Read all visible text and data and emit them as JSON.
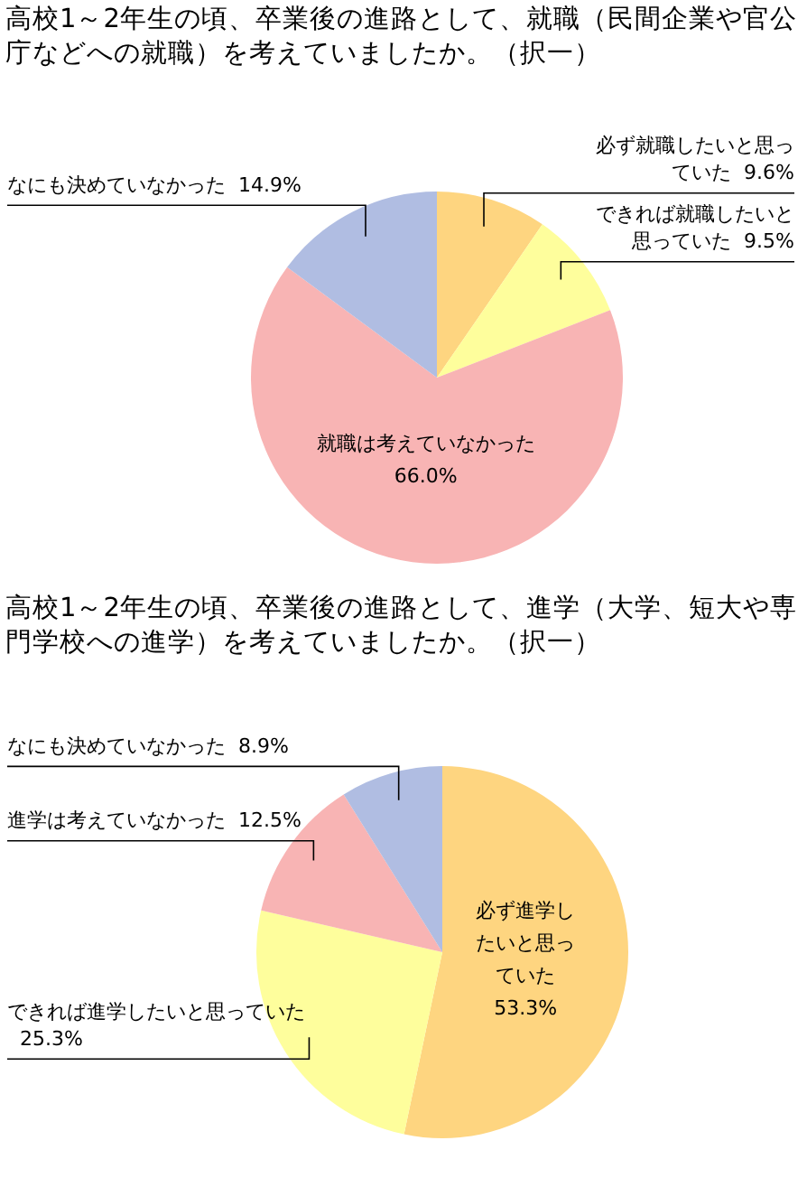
{
  "chart_data": [
    {
      "type": "pie",
      "title": "高校1～2年生の頃、卒業後の進路として、就職（民間企業や官公庁などへの就職）を考えていましたか。（択一）",
      "categories": [
        "必ず就職したいと思っていた",
        "できれば就職したいと思っていた",
        "就職は考えていなかった",
        "なにも決めていなかった"
      ],
      "values": [
        9.6,
        9.5,
        66.0,
        14.9
      ],
      "value_labels": [
        "9.6%",
        "9.5%",
        "66.0%",
        "14.9%"
      ],
      "colors": [
        "#fed580",
        "#fefe9c",
        "#f8b4b4",
        "#b0bde2"
      ],
      "legend": false
    },
    {
      "type": "pie",
      "title": "高校1～2年生の頃、卒業後の進路として、進学（大学、短大や専門学校への進学）を考えていましたか。（択一）",
      "categories": [
        "必ず進学したいと思っていた",
        "できれば進学したいと思っていた",
        "進学は考えていなかった",
        "なにも決めていなかった"
      ],
      "values": [
        53.3,
        25.3,
        12.5,
        8.9
      ],
      "value_labels": [
        "53.3%",
        "25.3%",
        "12.5%",
        "8.9%"
      ],
      "colors": [
        "#fed580",
        "#fefe9c",
        "#f8b4b4",
        "#b0bde2"
      ],
      "legend": false
    }
  ]
}
